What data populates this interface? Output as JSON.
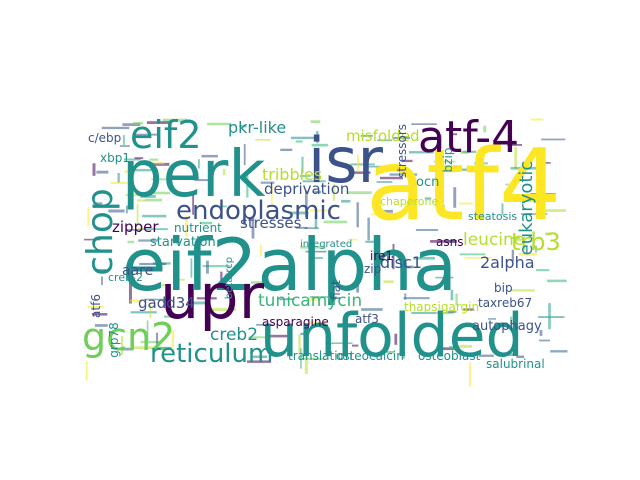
{
  "background": "#ffffff",
  "palette": {
    "deep-purple": "#440154",
    "indigo": "#3b528b",
    "blue": "#31688e",
    "teal": "#21918c",
    "teal-green": "#1f9e89",
    "green": "#35b779",
    "lime": "#6ece58",
    "yellow-green": "#b5de2b",
    "yellow": "#fde725"
  },
  "words": [
    {
      "text": "atf4",
      "color": "yellow"
    },
    {
      "text": "eif2alpha",
      "color": "teal"
    },
    {
      "text": "perk",
      "color": "teal"
    },
    {
      "text": "unfolded",
      "color": "teal"
    },
    {
      "text": "upr",
      "color": "deep-purple"
    },
    {
      "text": "isr",
      "color": "indigo"
    },
    {
      "text": "atf-4",
      "color": "deep-purple"
    },
    {
      "text": "gcn2",
      "color": "lime"
    },
    {
      "text": "chop",
      "color": "teal"
    },
    {
      "text": "eif2",
      "color": "teal"
    },
    {
      "text": "endoplasmic",
      "color": "indigo"
    },
    {
      "text": "reticulum",
      "color": "teal"
    },
    {
      "text": "trb3",
      "color": "yellow-green"
    },
    {
      "text": "pkr-like",
      "color": "teal"
    },
    {
      "text": "creb2",
      "color": "teal"
    },
    {
      "text": "tunicamycin",
      "color": "green"
    },
    {
      "text": "eukaryotic",
      "color": "teal"
    },
    {
      "text": "leucine",
      "color": "yellow-green"
    },
    {
      "text": "tribbles",
      "color": "yellow-green"
    },
    {
      "text": "misfolded",
      "color": "yellow-green"
    },
    {
      "text": "deprivation",
      "color": "indigo"
    },
    {
      "text": "disc1",
      "color": "indigo"
    },
    {
      "text": "2alpha",
      "color": "indigo"
    },
    {
      "text": "gadd34",
      "color": "indigo"
    },
    {
      "text": "stresses",
      "color": "indigo"
    },
    {
      "text": "nutrient",
      "color": "teal"
    },
    {
      "text": "starvation",
      "color": "teal"
    },
    {
      "text": "aare",
      "color": "indigo"
    },
    {
      "text": "zipper",
      "color": "deep-purple"
    },
    {
      "text": "xbp1",
      "color": "teal"
    },
    {
      "text": "c/ebp",
      "color": "indigo"
    },
    {
      "text": "atf6",
      "color": "indigo"
    },
    {
      "text": "grp78",
      "color": "teal"
    },
    {
      "text": "translation",
      "color": "teal"
    },
    {
      "text": "osteocalcin",
      "color": "teal"
    },
    {
      "text": "osteoblast",
      "color": "teal"
    },
    {
      "text": "salubrinal",
      "color": "teal"
    },
    {
      "text": "autophagy",
      "color": "indigo"
    },
    {
      "text": "bip",
      "color": "indigo"
    },
    {
      "text": "taxreb67",
      "color": "indigo"
    },
    {
      "text": "thapsigargin",
      "color": "yellow-green"
    },
    {
      "text": "atf3",
      "color": "indigo"
    },
    {
      "text": "asparagine",
      "color": "deep-purple"
    },
    {
      "text": "ire1",
      "color": "deep-purple"
    },
    {
      "text": "chaperone",
      "color": "yellow-green"
    },
    {
      "text": "stressors",
      "color": "indigo"
    },
    {
      "text": "ocn",
      "color": "teal"
    },
    {
      "text": "bzip",
      "color": "teal"
    },
    {
      "text": "asns",
      "color": "deep-purple"
    },
    {
      "text": "steatosis",
      "color": "teal"
    },
    {
      "text": "fiat",
      "color": "indigo"
    },
    {
      "text": "zip",
      "color": "indigo"
    },
    {
      "text": "creb-2",
      "color": "teal"
    },
    {
      "text": "betatrcp",
      "color": "teal"
    },
    {
      "text": "integrated",
      "color": "teal"
    }
  ]
}
